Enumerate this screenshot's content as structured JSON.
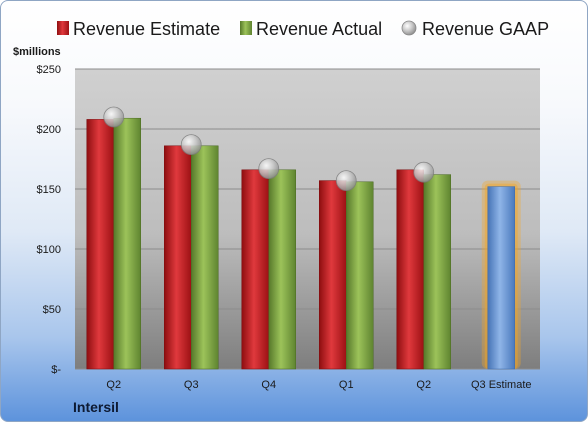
{
  "company": "Intersil",
  "chart_data": {
    "type": "bar",
    "unit_label": "$millions",
    "categories": [
      "Q2",
      "Q3",
      "Q4",
      "Q1",
      "Q2",
      "Q3 Estimate"
    ],
    "series": [
      {
        "name": "Revenue Estimate",
        "color": "#c8161b",
        "values": [
          208,
          186,
          166,
          157,
          166,
          null
        ]
      },
      {
        "name": "Revenue Actual",
        "color": "#79a13b",
        "values": [
          209,
          186,
          166,
          156,
          162,
          null
        ]
      },
      {
        "name": "Revenue GAAP",
        "color": "#bfbfbf",
        "kind": "marker",
        "values": [
          210,
          187,
          167,
          157,
          164,
          null
        ]
      }
    ],
    "estimate": {
      "category": "Q3 Estimate",
      "value": 152,
      "color": "#5b8fd4",
      "glow": "#f5a623"
    },
    "y_ticks": [
      0,
      50,
      100,
      150,
      200,
      250
    ],
    "y_tick_labels": [
      "$-",
      "$50",
      "$100",
      "$150",
      "$200",
      "$250"
    ],
    "ylim": [
      0,
      250
    ],
    "grid": true,
    "legend_position": "top"
  }
}
